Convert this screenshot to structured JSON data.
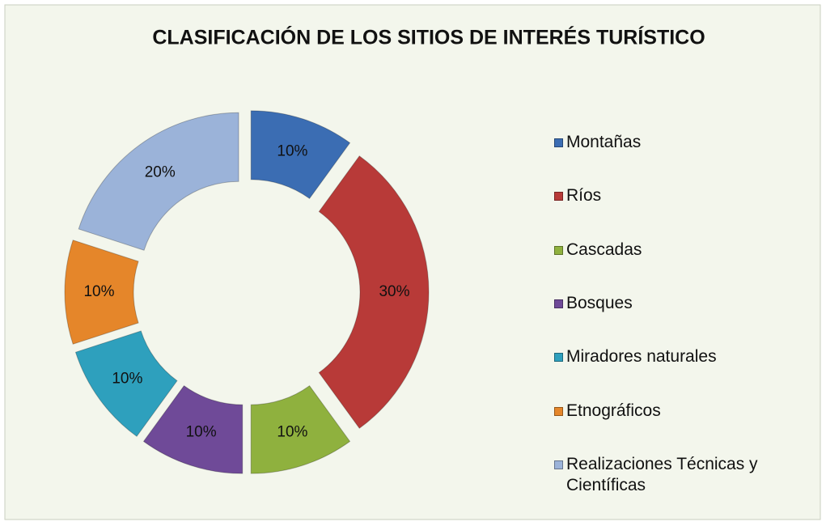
{
  "chart_data": {
    "type": "doughnut",
    "title": "CLASIFICACIÓN DE LOS SITIOS DE INTERÉS TURÍSTICO",
    "categories": [
      "Montañas",
      "Ríos",
      "Cascadas",
      "Bosques",
      "Miradores naturales",
      "Etnográficos",
      "Realizaciones Técnicas y Científicas"
    ],
    "values": [
      10,
      30,
      10,
      10,
      10,
      10,
      20
    ],
    "value_labels": [
      "10%",
      "30%",
      "10%",
      "10%",
      "10%",
      "10%",
      "20%"
    ],
    "colors": [
      "#3b6db3",
      "#b83a38",
      "#8fb13e",
      "#6f4a98",
      "#2ea0bd",
      "#e5862a",
      "#9bb3d9"
    ],
    "legend": "right"
  }
}
